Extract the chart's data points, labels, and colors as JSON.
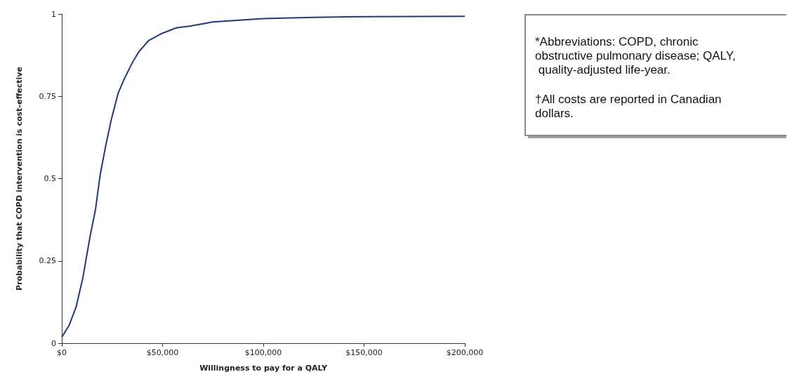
{
  "chart_data": {
    "type": "line",
    "xlabel": "Willingness to pay for a QALY",
    "ylabel": "Probability that COPD intervention is cost-effective",
    "xlim": [
      0,
      200000
    ],
    "xticks": [
      {
        "value": 0,
        "label": "$0"
      },
      {
        "value": 50000,
        "label": "$50,000"
      },
      {
        "value": 100000,
        "label": "$100,000"
      },
      {
        "value": 150000,
        "label": "$150,000"
      },
      {
        "value": 200000,
        "label": "$200,000"
      }
    ],
    "ylim": [
      0,
      1
    ],
    "yticks": [
      0,
      0.25,
      0.5,
      0.75,
      1
    ],
    "grid": false,
    "marker": "none",
    "line_style": "solid",
    "series": [
      {
        "color": "#1f3a7a",
        "x": [
          0,
          3700,
          7100,
          10500,
          13900,
          16700,
          19000,
          21800,
          24600,
          28000,
          30800,
          34800,
          38200,
          43200,
          50000,
          56800,
          63500,
          75000,
          100000,
          125000,
          150000,
          200000
        ],
        "values": [
          0.018,
          0.055,
          0.11,
          0.2,
          0.32,
          0.405,
          0.51,
          0.6,
          0.68,
          0.76,
          0.8,
          0.85,
          0.885,
          0.92,
          0.942,
          0.958,
          0.963,
          0.976,
          0.986,
          0.99,
          0.992,
          0.993
        ]
      }
    ],
    "annotations": [
      "*Abbreviations: COPD, chronic obstructive pulmonary disease; QALY, quality-adjusted life-year.",
      "†All costs are reported in Canadian dollars."
    ]
  }
}
